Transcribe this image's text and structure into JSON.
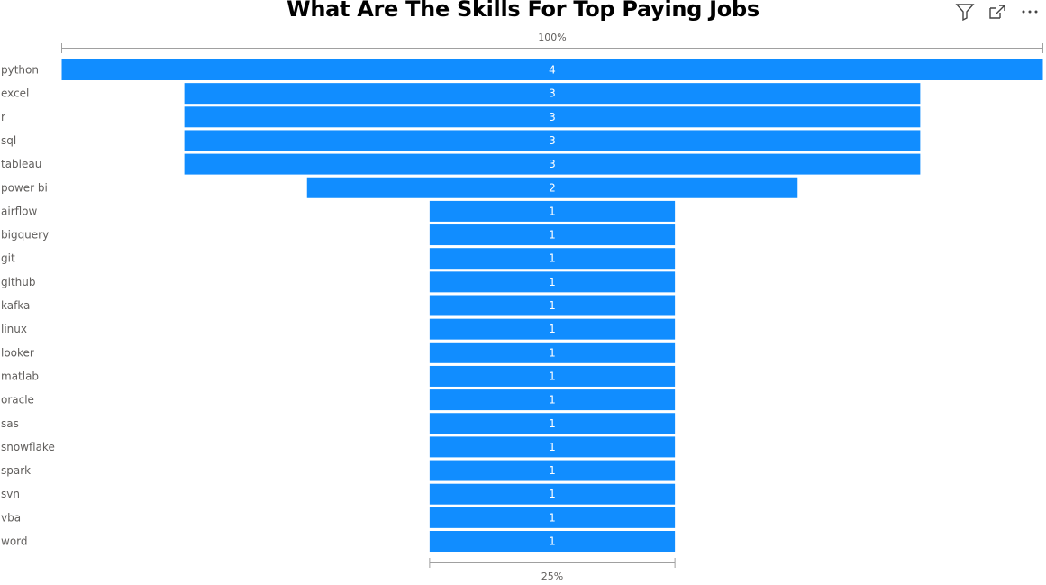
{
  "visual": {
    "title": "What Are The Skills For Top Paying Jobs",
    "toolbar": [
      {
        "name": "filter-icon"
      },
      {
        "name": "focus-mode-icon"
      },
      {
        "name": "more-options-icon"
      }
    ]
  },
  "colors": {
    "bar": "#118DFF",
    "bar_label": "#FFFFFF",
    "axis_text": "#605E5C",
    "bracket": "#A0A0A0"
  },
  "chart_data": {
    "type": "funnel",
    "title": "What Are The Skills For Top Paying Jobs",
    "categories": [
      "python",
      "excel",
      "r",
      "sql",
      "tableau",
      "power bi",
      "airflow",
      "bigquery",
      "git",
      "github",
      "kafka",
      "linux",
      "looker",
      "matlab",
      "oracle",
      "sas",
      "snowflake",
      "spark",
      "svn",
      "vba",
      "word"
    ],
    "values": [
      4,
      3,
      3,
      3,
      3,
      2,
      1,
      1,
      1,
      1,
      1,
      1,
      1,
      1,
      1,
      1,
      1,
      1,
      1,
      1,
      1
    ],
    "top_percent_label": "100%",
    "bottom_percent_label": "25%"
  }
}
